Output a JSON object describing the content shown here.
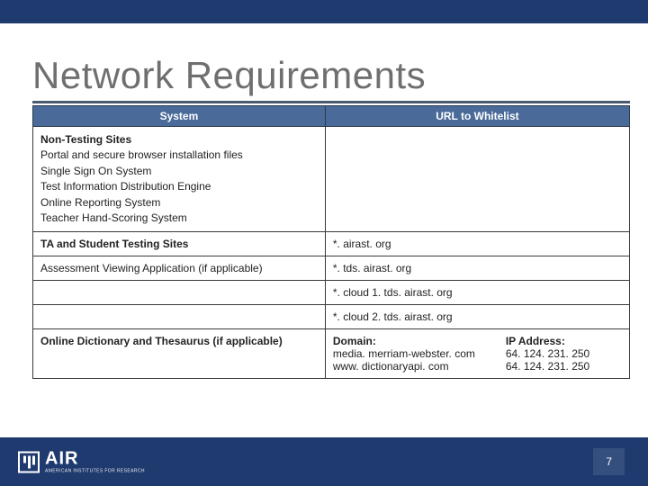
{
  "colors": {
    "band": "#1f3a6e",
    "table_header": "#4a6a99",
    "rule": "#4a5a70",
    "title": "#6f6f6f"
  },
  "title": "Network Requirements",
  "table": {
    "headers": {
      "system": "System",
      "url": "URL to Whitelist"
    },
    "non_testing": {
      "header": "Non-Testing Sites",
      "items": [
        "Portal and secure browser installation files",
        "Single Sign On System",
        "Test Information Distribution Engine",
        "Online Reporting System",
        "Teacher Hand-Scoring System"
      ],
      "url": ""
    },
    "ta_sites": {
      "label": "TA and Student Testing Sites",
      "url": "*. airast. org"
    },
    "ava": {
      "label": "Assessment Viewing Application (if applicable)",
      "url": "*. tds. airast. org"
    },
    "cloud1": {
      "url": "*. cloud 1. tds. airast. org"
    },
    "cloud2": {
      "url": "*. cloud 2. tds. airast. org"
    },
    "dictionary": {
      "label": "Online Dictionary and Thesaurus (if applicable)",
      "domain_label": "Domain:",
      "domains": [
        "media. merriam-webster. com",
        "www. dictionaryapi. com"
      ],
      "ip_label": "IP Address:",
      "ips": [
        "64. 124. 231. 250",
        "64. 124. 231. 250"
      ]
    }
  },
  "footer": {
    "logo_text": "AIR",
    "logo_sub": "AMERICAN INSTITUTES FOR RESEARCH",
    "page": "7"
  }
}
